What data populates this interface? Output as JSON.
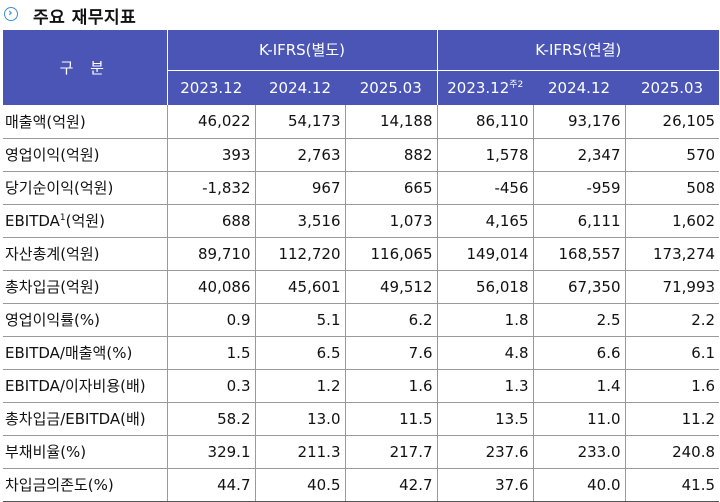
{
  "title": "주요 재무지표",
  "table": {
    "row_header": "구 분",
    "groups": [
      {
        "label": "K-IFRS(별도)",
        "periods": [
          {
            "label": "2023.12",
            "sup": ""
          },
          {
            "label": "2024.12",
            "sup": ""
          },
          {
            "label": "2025.03",
            "sup": ""
          }
        ]
      },
      {
        "label": "K-IFRS(연결)",
        "periods": [
          {
            "label": "2023.12",
            "sup": "주2"
          },
          {
            "label": "2024.12",
            "sup": ""
          },
          {
            "label": "2025.03",
            "sup": ""
          }
        ]
      }
    ],
    "rows": [
      {
        "label": "매출액(억원)",
        "values": [
          "46,022",
          "54,173",
          "14,188",
          "86,110",
          "93,176",
          "26,105"
        ]
      },
      {
        "label": "영업이익(억원)",
        "values": [
          "393",
          "2,763",
          "882",
          "1,578",
          "2,347",
          "570"
        ]
      },
      {
        "label": "당기순이익(억원)",
        "values": [
          "-1,832",
          "967",
          "665",
          "-456",
          "-959",
          "508"
        ]
      },
      {
        "label": "EBITDA",
        "label_sup": "1",
        "label_suffix": "(억원)",
        "values": [
          "688",
          "3,516",
          "1,073",
          "4,165",
          "6,111",
          "1,602"
        ]
      },
      {
        "label": "자산총계(억원)",
        "values": [
          "89,710",
          "112,720",
          "116,065",
          "149,014",
          "168,557",
          "173,274"
        ]
      },
      {
        "label": "총차입금(억원)",
        "values": [
          "40,086",
          "45,601",
          "49,512",
          "56,018",
          "67,350",
          "71,993"
        ]
      },
      {
        "label": "영업이익률(%)",
        "values": [
          "0.9",
          "5.1",
          "6.2",
          "1.8",
          "2.5",
          "2.2"
        ]
      },
      {
        "label": "EBITDA/매출액(%)",
        "values": [
          "1.5",
          "6.5",
          "7.6",
          "4.8",
          "6.6",
          "6.1"
        ]
      },
      {
        "label": "EBITDA/이자비용(배)",
        "values": [
          "0.3",
          "1.2",
          "1.6",
          "1.3",
          "1.4",
          "1.6"
        ]
      },
      {
        "label": "총차입금/EBITDA(배)",
        "values": [
          "58.2",
          "13.0",
          "11.5",
          "13.5",
          "11.0",
          "11.2"
        ]
      },
      {
        "label": "부채비율(%)",
        "values": [
          "329.1",
          "211.3",
          "217.7",
          "237.6",
          "233.0",
          "240.8"
        ]
      },
      {
        "label": "차입금의존도(%)",
        "values": [
          "44.7",
          "40.5",
          "42.7",
          "37.6",
          "40.0",
          "41.5"
        ]
      }
    ]
  }
}
